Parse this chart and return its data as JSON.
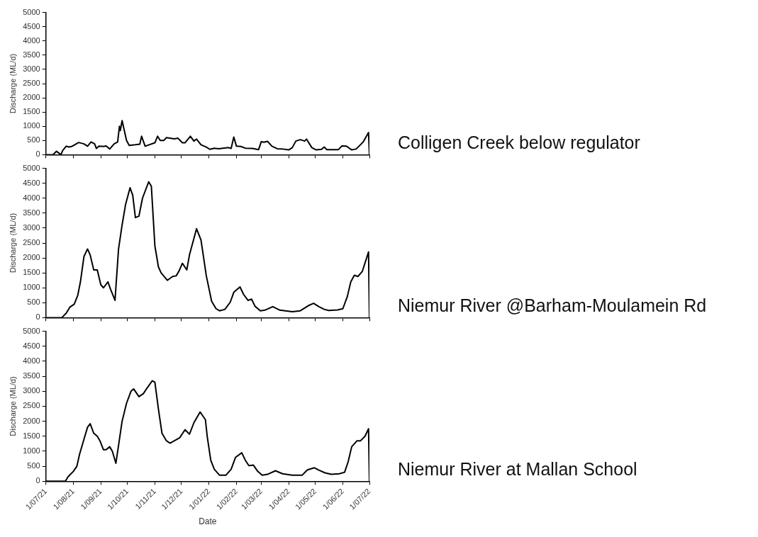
{
  "chart_data": [
    {
      "type": "line",
      "ylabel": "Discharge (ML/d)",
      "tick_labels": "y",
      "marker": "none",
      "line_style": "solid",
      "xlim": [
        "2021-07-01",
        "2022-07-01"
      ],
      "ylim": [
        0,
        5000
      ],
      "xticks": [
        {
          "value": "2021-07-01",
          "label": null
        },
        {
          "value": "2021-08-01",
          "label": null
        },
        {
          "value": "2021-09-01",
          "label": null
        },
        {
          "value": "2021-10-01",
          "label": null
        },
        {
          "value": "2021-11-01",
          "label": null
        },
        {
          "value": "2021-12-01",
          "label": null
        },
        {
          "value": "2022-01-01",
          "label": null
        },
        {
          "value": "2022-02-01",
          "label": null
        },
        {
          "value": "2022-03-01",
          "label": null
        },
        {
          "value": "2022-04-01",
          "label": null
        },
        {
          "value": "2022-05-01",
          "label": null
        },
        {
          "value": "2022-06-01",
          "label": null
        },
        {
          "value": "2022-07-01",
          "label": null
        }
      ],
      "yticks": [
        0,
        500,
        1000,
        1500,
        2000,
        2500,
        3000,
        3500,
        4000,
        4500,
        5000
      ],
      "x": [
        "2021-07-01",
        "2021-07-09",
        "2021-07-13",
        "2021-07-16",
        "2021-07-18",
        "2021-07-20",
        "2021-07-24",
        "2021-07-27",
        "2021-07-30",
        "2021-08-07",
        "2021-08-13",
        "2021-08-17",
        "2021-08-21",
        "2021-08-25",
        "2021-08-27",
        "2021-08-30",
        "2021-09-04",
        "2021-09-07",
        "2021-09-11",
        "2021-09-16",
        "2021-09-20",
        "2021-09-22",
        "2021-09-23",
        "2021-09-25",
        "2021-09-30",
        "2021-10-03",
        "2021-10-10",
        "2021-10-15",
        "2021-10-17",
        "2021-10-21",
        "2021-11-01",
        "2021-11-04",
        "2021-11-07",
        "2021-11-11",
        "2021-11-14",
        "2021-11-23",
        "2021-11-27",
        "2021-12-02",
        "2021-12-05",
        "2021-12-11",
        "2021-12-15",
        "2021-12-18",
        "2021-12-23",
        "2021-12-29",
        "2022-01-02",
        "2022-01-07",
        "2022-01-12",
        "2022-01-23",
        "2022-01-26",
        "2022-01-29",
        "2022-02-01",
        "2022-02-06",
        "2022-02-11",
        "2022-02-19",
        "2022-02-26",
        "2022-03-01",
        "2022-03-04",
        "2022-03-08",
        "2022-03-13",
        "2022-03-19",
        "2022-03-25",
        "2022-04-01",
        "2022-04-05",
        "2022-04-09",
        "2022-04-14",
        "2022-04-19",
        "2022-04-21",
        "2022-04-27",
        "2022-05-02",
        "2022-05-08",
        "2022-05-11",
        "2022-05-14",
        "2022-05-27",
        "2022-05-31",
        "2022-06-05",
        "2022-06-07",
        "2022-06-11",
        "2022-06-16",
        "2022-06-24",
        "2022-06-30",
        "2022-07-01"
      ],
      "series": [
        {
          "name": "Colligen Creek below regulator",
          "color": "#000000",
          "values": [
            0,
            0,
            120,
            50,
            0,
            150,
            300,
            270,
            290,
            430,
            380,
            300,
            450,
            380,
            220,
            300,
            290,
            310,
            200,
            380,
            450,
            1000,
            850,
            1200,
            500,
            330,
            350,
            370,
            650,
            300,
            420,
            650,
            500,
            500,
            600,
            560,
            580,
            420,
            420,
            650,
            480,
            550,
            350,
            270,
            190,
            230,
            210,
            250,
            220,
            620,
            300,
            290,
            230,
            220,
            180,
            460,
            440,
            470,
            300,
            210,
            200,
            170,
            250,
            480,
            530,
            480,
            550,
            250,
            170,
            190,
            270,
            180,
            180,
            310,
            300,
            260,
            170,
            200,
            450,
            780,
            0
          ]
        }
      ]
    },
    {
      "type": "line",
      "ylabel": "Discharge (ML/d)",
      "tick_labels": "y",
      "marker": "none",
      "line_style": "solid",
      "xlim": [
        "2021-07-01",
        "2022-07-01"
      ],
      "ylim": [
        0,
        5000
      ],
      "xticks": [
        {
          "value": "2021-07-01",
          "label": null
        },
        {
          "value": "2021-08-01",
          "label": null
        },
        {
          "value": "2021-09-01",
          "label": null
        },
        {
          "value": "2021-10-01",
          "label": null
        },
        {
          "value": "2021-11-01",
          "label": null
        },
        {
          "value": "2021-12-01",
          "label": null
        },
        {
          "value": "2022-01-01",
          "label": null
        },
        {
          "value": "2022-02-01",
          "label": null
        },
        {
          "value": "2022-03-01",
          "label": null
        },
        {
          "value": "2022-04-01",
          "label": null
        },
        {
          "value": "2022-05-01",
          "label": null
        },
        {
          "value": "2022-06-01",
          "label": null
        },
        {
          "value": "2022-07-01",
          "label": null
        }
      ],
      "yticks": [
        0,
        500,
        1000,
        1500,
        2000,
        2500,
        3000,
        3500,
        4000,
        4500,
        5000
      ],
      "x": [
        "2021-07-01",
        "2021-07-19",
        "2021-07-24",
        "2021-07-28",
        "2021-08-02",
        "2021-08-06",
        "2021-08-09",
        "2021-08-13",
        "2021-08-17",
        "2021-08-20",
        "2021-08-24",
        "2021-08-28",
        "2021-09-01",
        "2021-09-04",
        "2021-09-09",
        "2021-09-12",
        "2021-09-17",
        "2021-09-21",
        "2021-09-25",
        "2021-09-29",
        "2021-10-04",
        "2021-10-07",
        "2021-10-10",
        "2021-10-14",
        "2021-10-18",
        "2021-10-25",
        "2021-10-28",
        "2021-11-01",
        "2021-11-05",
        "2021-11-08",
        "2021-11-15",
        "2021-11-21",
        "2021-11-25",
        "2021-11-28",
        "2021-12-02",
        "2021-12-07",
        "2021-12-10",
        "2021-12-18",
        "2021-12-23",
        "2021-12-29",
        "2022-01-04",
        "2022-01-09",
        "2022-01-13",
        "2022-01-19",
        "2022-01-25",
        "2022-01-29",
        "2022-02-05",
        "2022-02-09",
        "2022-02-14",
        "2022-02-18",
        "2022-02-22",
        "2022-02-28",
        "2022-03-05",
        "2022-03-14",
        "2022-03-22",
        "2022-04-05",
        "2022-04-14",
        "2022-04-23",
        "2022-04-29",
        "2022-05-05",
        "2022-05-11",
        "2022-05-16",
        "2022-05-26",
        "2022-06-01",
        "2022-06-06",
        "2022-06-10",
        "2022-06-14",
        "2022-06-18",
        "2022-06-23",
        "2022-06-30",
        "2022-07-01"
      ],
      "series": [
        {
          "name": "Niemur River @Barham-Moulamein Rd",
          "color": "#000000",
          "values": [
            0,
            0,
            150,
            350,
            450,
            750,
            1200,
            2050,
            2300,
            2100,
            1600,
            1600,
            1100,
            1000,
            1200,
            950,
            580,
            2300,
            3100,
            3800,
            4350,
            4100,
            3350,
            3400,
            4000,
            4550,
            4400,
            2400,
            1700,
            1500,
            1250,
            1380,
            1400,
            1550,
            1820,
            1600,
            2100,
            2980,
            2600,
            1400,
            550,
            300,
            230,
            280,
            520,
            850,
            1030,
            780,
            580,
            620,
            380,
            230,
            250,
            370,
            250,
            200,
            230,
            400,
            480,
            370,
            280,
            240,
            260,
            300,
            700,
            1200,
            1420,
            1380,
            1550,
            2200,
            0
          ]
        }
      ]
    },
    {
      "type": "line",
      "ylabel": "Discharge (ML/d)",
      "xlabel": "Date",
      "marker": "none",
      "line_style": "solid",
      "xlim": [
        "2021-07-01",
        "2022-07-01"
      ],
      "ylim": [
        0,
        5000
      ],
      "xticks": [
        {
          "value": "2021-07-01",
          "label": "1/07/21"
        },
        {
          "value": "2021-08-01",
          "label": "1/08/21"
        },
        {
          "value": "2021-09-01",
          "label": "1/09/21"
        },
        {
          "value": "2021-10-01",
          "label": "1/10/21"
        },
        {
          "value": "2021-11-01",
          "label": "1/11/21"
        },
        {
          "value": "2021-12-01",
          "label": "1/12/21"
        },
        {
          "value": "2022-01-01",
          "label": "1/01/22"
        },
        {
          "value": "2022-02-01",
          "label": "1/02/22"
        },
        {
          "value": "2022-03-01",
          "label": "1/03/22"
        },
        {
          "value": "2022-04-01",
          "label": "1/04/22"
        },
        {
          "value": "2022-05-01",
          "label": "1/05/22"
        },
        {
          "value": "2022-06-01",
          "label": "1/06/22"
        },
        {
          "value": "2022-07-01",
          "label": "1/07/22"
        }
      ],
      "yticks": [
        0,
        500,
        1000,
        1500,
        2000,
        2500,
        3000,
        3500,
        4000,
        4500,
        5000
      ],
      "x": [
        "2021-07-01",
        "2021-07-05",
        "2021-07-16",
        "2021-07-23",
        "2021-07-26",
        "2021-08-01",
        "2021-08-05",
        "2021-08-08",
        "2021-08-13",
        "2021-08-17",
        "2021-08-20",
        "2021-08-24",
        "2021-08-28",
        "2021-08-31",
        "2021-09-04",
        "2021-09-07",
        "2021-09-11",
        "2021-09-14",
        "2021-09-18",
        "2021-09-22",
        "2021-09-25",
        "2021-09-30",
        "2021-10-05",
        "2021-10-08",
        "2021-10-14",
        "2021-10-19",
        "2021-10-23",
        "2021-10-29",
        "2021-11-01",
        "2021-11-05",
        "2021-11-09",
        "2021-11-14",
        "2021-11-18",
        "2021-11-23",
        "2021-11-29",
        "2021-12-05",
        "2021-12-10",
        "2021-12-15",
        "2021-12-22",
        "2021-12-28",
        "2021-12-30",
        "2022-01-03",
        "2022-01-07",
        "2022-01-13",
        "2022-01-20",
        "2022-01-26",
        "2022-01-31",
        "2022-02-07",
        "2022-02-11",
        "2022-02-15",
        "2022-02-20",
        "2022-02-25",
        "2022-03-02",
        "2022-03-08",
        "2022-03-17",
        "2022-03-25",
        "2022-04-05",
        "2022-04-16",
        "2022-04-22",
        "2022-04-30",
        "2022-05-05",
        "2022-05-12",
        "2022-05-19",
        "2022-05-28",
        "2022-06-03",
        "2022-06-07",
        "2022-06-11",
        "2022-06-17",
        "2022-06-21",
        "2022-06-26",
        "2022-06-30",
        "2022-07-01"
      ],
      "series": [
        {
          "name": "Niemur River at Mallan School",
          "color": "#000000",
          "values": [
            0,
            0,
            0,
            0,
            150,
            330,
            500,
            900,
            1400,
            1800,
            1920,
            1600,
            1500,
            1350,
            1050,
            1050,
            1150,
            1000,
            600,
            1400,
            2000,
            2600,
            3000,
            3080,
            2820,
            2920,
            3100,
            3350,
            3300,
            2400,
            1600,
            1350,
            1270,
            1350,
            1450,
            1720,
            1570,
            1950,
            2310,
            2050,
            1500,
            700,
            400,
            200,
            200,
            400,
            800,
            950,
            700,
            520,
            540,
            330,
            200,
            230,
            350,
            250,
            200,
            200,
            380,
            450,
            370,
            280,
            230,
            250,
            300,
            650,
            1150,
            1350,
            1350,
            1500,
            1750,
            0
          ]
        }
      ]
    }
  ]
}
